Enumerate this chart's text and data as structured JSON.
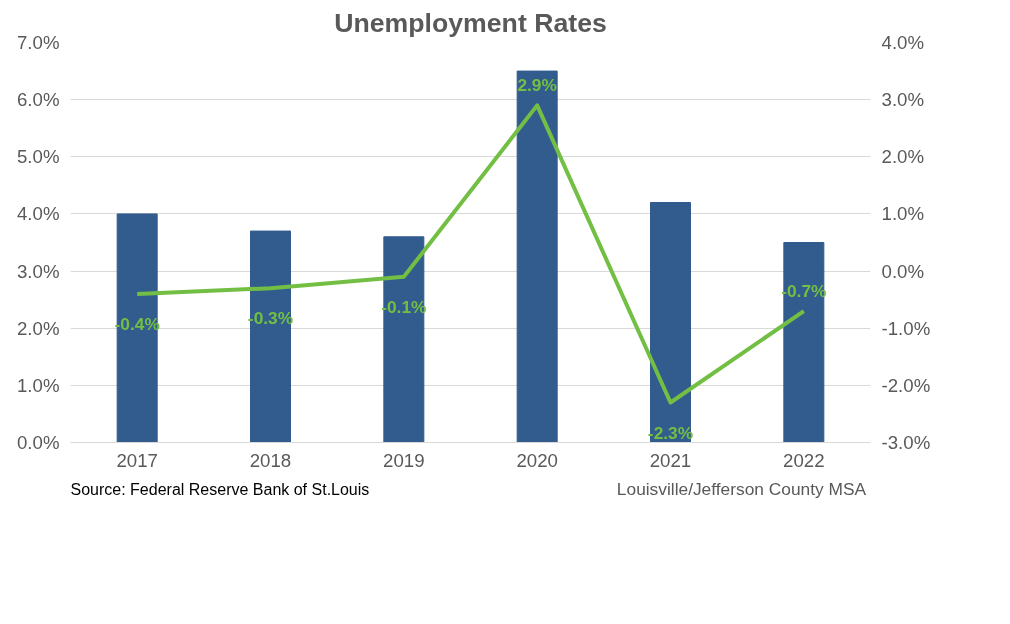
{
  "chart_data": {
    "type": "bar",
    "title": "Unemployment Rates",
    "categories": [
      "2017",
      "2018",
      "2019",
      "2020",
      "2021",
      "2022"
    ],
    "series": [
      {
        "name": "Louisville/Jefferson County MSA",
        "color": "#335c8e",
        "values": [
          4.0,
          3.7,
          3.6,
          6.5,
          4.2,
          3.5
        ]
      },
      {
        "type": "line",
        "axis": "y2",
        "color": "#72bf44",
        "values": [
          -0.4,
          -0.3,
          -0.1,
          2.9,
          -2.3,
          -0.7
        ],
        "value_labels": [
          "-0.4%",
          "-0.3%",
          "-0.1%",
          "2.9%",
          "-2.3%",
          "-0.7%"
        ]
      }
    ],
    "ylim": [
      0,
      7
    ],
    "yticks": [
      {
        "value": 0,
        "label": "0.0%"
      },
      {
        "value": 1,
        "label": "1.0%"
      },
      {
        "value": 2,
        "label": "2.0%"
      },
      {
        "value": 3,
        "label": "3.0%"
      },
      {
        "value": 4,
        "label": "4.0%"
      },
      {
        "value": 5,
        "label": "5.0%"
      },
      {
        "value": 6,
        "label": "6.0%"
      },
      {
        "value": 7,
        "label": "7.0%"
      }
    ],
    "y2lim": [
      -3,
      4
    ],
    "y2ticks": [
      {
        "value": -3,
        "label": "-3.0%"
      },
      {
        "value": -2,
        "label": "-2.0%"
      },
      {
        "value": -1,
        "label": "-1.0%"
      },
      {
        "value": 0,
        "label": "0.0%"
      },
      {
        "value": 1,
        "label": "1.0%"
      },
      {
        "value": 2,
        "label": "2.0%"
      },
      {
        "value": 3,
        "label": "3.0%"
      },
      {
        "value": 4,
        "label": "4.0%"
      }
    ],
    "grid": "y",
    "legend": "bottom right",
    "marker": "none",
    "line_style": "solid",
    "annotations": [
      "Source: Federal Reserve  Bank of St.Louis"
    ]
  }
}
